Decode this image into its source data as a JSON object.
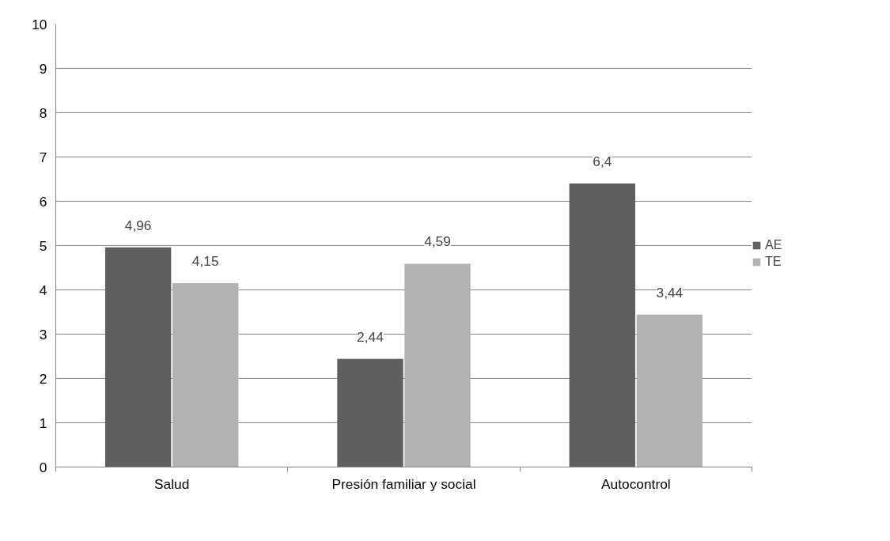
{
  "chart_data": {
    "type": "bar",
    "categories": [
      "Salud",
      "Presión familiar y social",
      "Autocontrol"
    ],
    "series": [
      {
        "name": "AE",
        "color": "#5f5f5f",
        "values": [
          4.96,
          2.44,
          6.4
        ],
        "value_labels": [
          "4,96",
          "2,44",
          "6,4"
        ]
      },
      {
        "name": "TE",
        "color": "#b2b2b2",
        "values": [
          4.15,
          4.59,
          3.44
        ],
        "value_labels": [
          "4,15",
          "4,59",
          "3,44"
        ]
      }
    ],
    "ylim": [
      0,
      10
    ],
    "yticks": [
      0,
      1,
      2,
      3,
      4,
      5,
      6,
      7,
      8,
      9,
      10
    ],
    "grid": "y",
    "legend": "right"
  }
}
